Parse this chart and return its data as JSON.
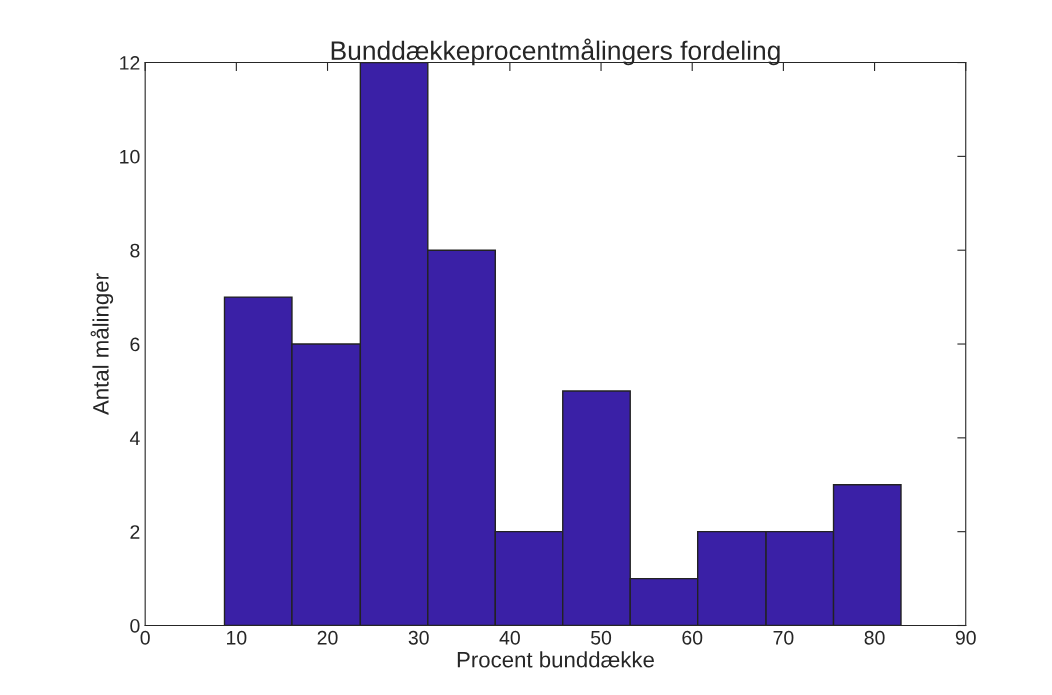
{
  "chart_data": {
    "type": "histogram",
    "title": "Bunddækkeprocentmålingers fordeling",
    "xlabel": "Procent bunddække",
    "ylabel": "Antal målinger",
    "bins": [
      8.7,
      16.1,
      23.6,
      31.0,
      38.4,
      45.8,
      53.2,
      60.6,
      68.1,
      75.5,
      82.9
    ],
    "values": [
      7,
      6,
      12,
      8,
      2,
      5,
      1,
      2,
      2,
      3
    ],
    "color": "#3a20a6",
    "xlim": [
      0,
      90
    ],
    "xticks": [
      0,
      10,
      20,
      30,
      40,
      50,
      60,
      70,
      80,
      90
    ],
    "ylim": [
      0,
      12
    ],
    "yticks": [
      0,
      2,
      4,
      6,
      8,
      10,
      12
    ],
    "grid": false
  }
}
